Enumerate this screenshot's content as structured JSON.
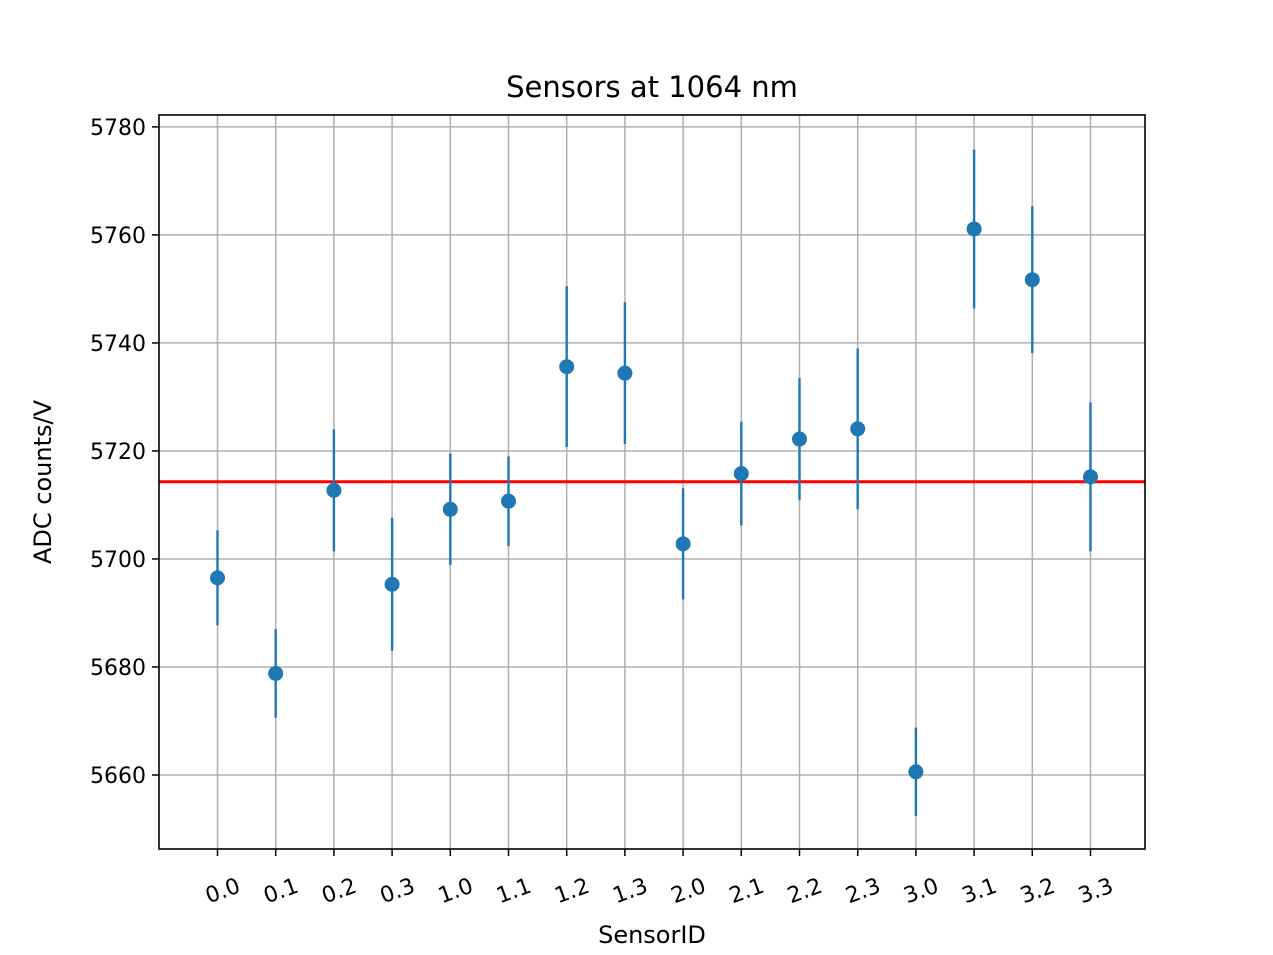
{
  "chart_data": {
    "type": "scatter",
    "title": "Sensors at 1064 nm",
    "xlabel": "SensorID",
    "ylabel": "ADC counts/V",
    "categories": [
      "0.0",
      "0.1",
      "0.2",
      "0.3",
      "1.0",
      "1.1",
      "1.2",
      "1.3",
      "2.0",
      "2.1",
      "2.2",
      "2.3",
      "3.0",
      "3.1",
      "3.2",
      "3.3"
    ],
    "values": [
      5696.5,
      5678.8,
      5712.7,
      5695.3,
      5709.2,
      5710.7,
      5735.6,
      5734.4,
      5702.8,
      5715.8,
      5722.2,
      5724.1,
      5660.6,
      5761.1,
      5751.7,
      5715.2
    ],
    "errors": [
      8.8,
      8.2,
      11.3,
      12.3,
      10.3,
      8.3,
      14.9,
      13.1,
      10.3,
      9.6,
      11.3,
      14.9,
      8.2,
      14.7,
      13.6,
      13.8
    ],
    "yticks": [
      5660,
      5680,
      5700,
      5720,
      5740,
      5760,
      5780
    ],
    "ylim": [
      5646.3,
      5782.2
    ],
    "reference_line": 5714.3,
    "grid": true,
    "colors": {
      "points": "#1f77b4",
      "reference_line": "#ff0000",
      "grid": "#b0b0b0"
    }
  }
}
